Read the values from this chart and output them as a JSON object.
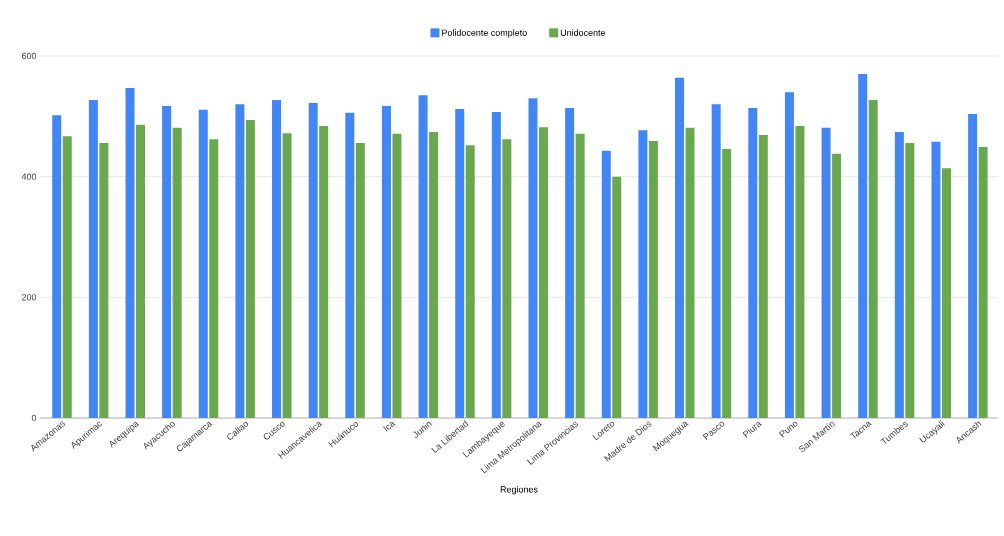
{
  "chart_data": {
    "type": "bar",
    "xlabel": "Regiones",
    "categories": [
      "Amazonas",
      "Apurimac",
      "Arequipa",
      "Ayacucho",
      "Cajamarca",
      "Callao",
      "Cusco",
      "Huancavelica",
      "Huánuco",
      "Ica",
      "Junin",
      "La Libertad",
      "Lambayeque",
      "Lima Metropolitana",
      "Lima Provincias",
      "Loreto",
      "Madre de Dios",
      "Moquegua",
      "Pasco",
      "Piura",
      "Puno",
      "San Martín",
      "Tacna",
      "Tumbes",
      "Ucayali",
      "Ancash"
    ],
    "series": [
      {
        "name": "Polidocente completo",
        "color": "#4285f4",
        "values": [
          502,
          527,
          547,
          517,
          511,
          520,
          527,
          522,
          506,
          517,
          535,
          512,
          507,
          530,
          514,
          443,
          477,
          564,
          520,
          514,
          540,
          481,
          570,
          474,
          458,
          504
        ]
      },
      {
        "name": "Unidocente",
        "color": "#6aa84f",
        "values": [
          467,
          456,
          486,
          481,
          462,
          494,
          472,
          484,
          456,
          471,
          474,
          452,
          462,
          482,
          471,
          400,
          459,
          481,
          446,
          469,
          484,
          438,
          527,
          456,
          414,
          449
        ]
      }
    ],
    "ylim": [
      0,
      600
    ],
    "yticks": [
      0,
      200,
      400,
      600
    ],
    "grid": "y",
    "legend": "top"
  }
}
